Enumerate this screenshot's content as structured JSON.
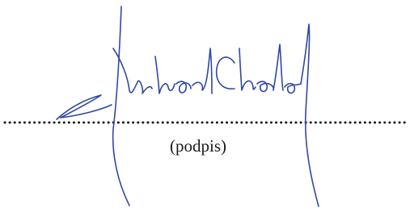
{
  "signature_block": {
    "caption": "(podpis)"
  }
}
